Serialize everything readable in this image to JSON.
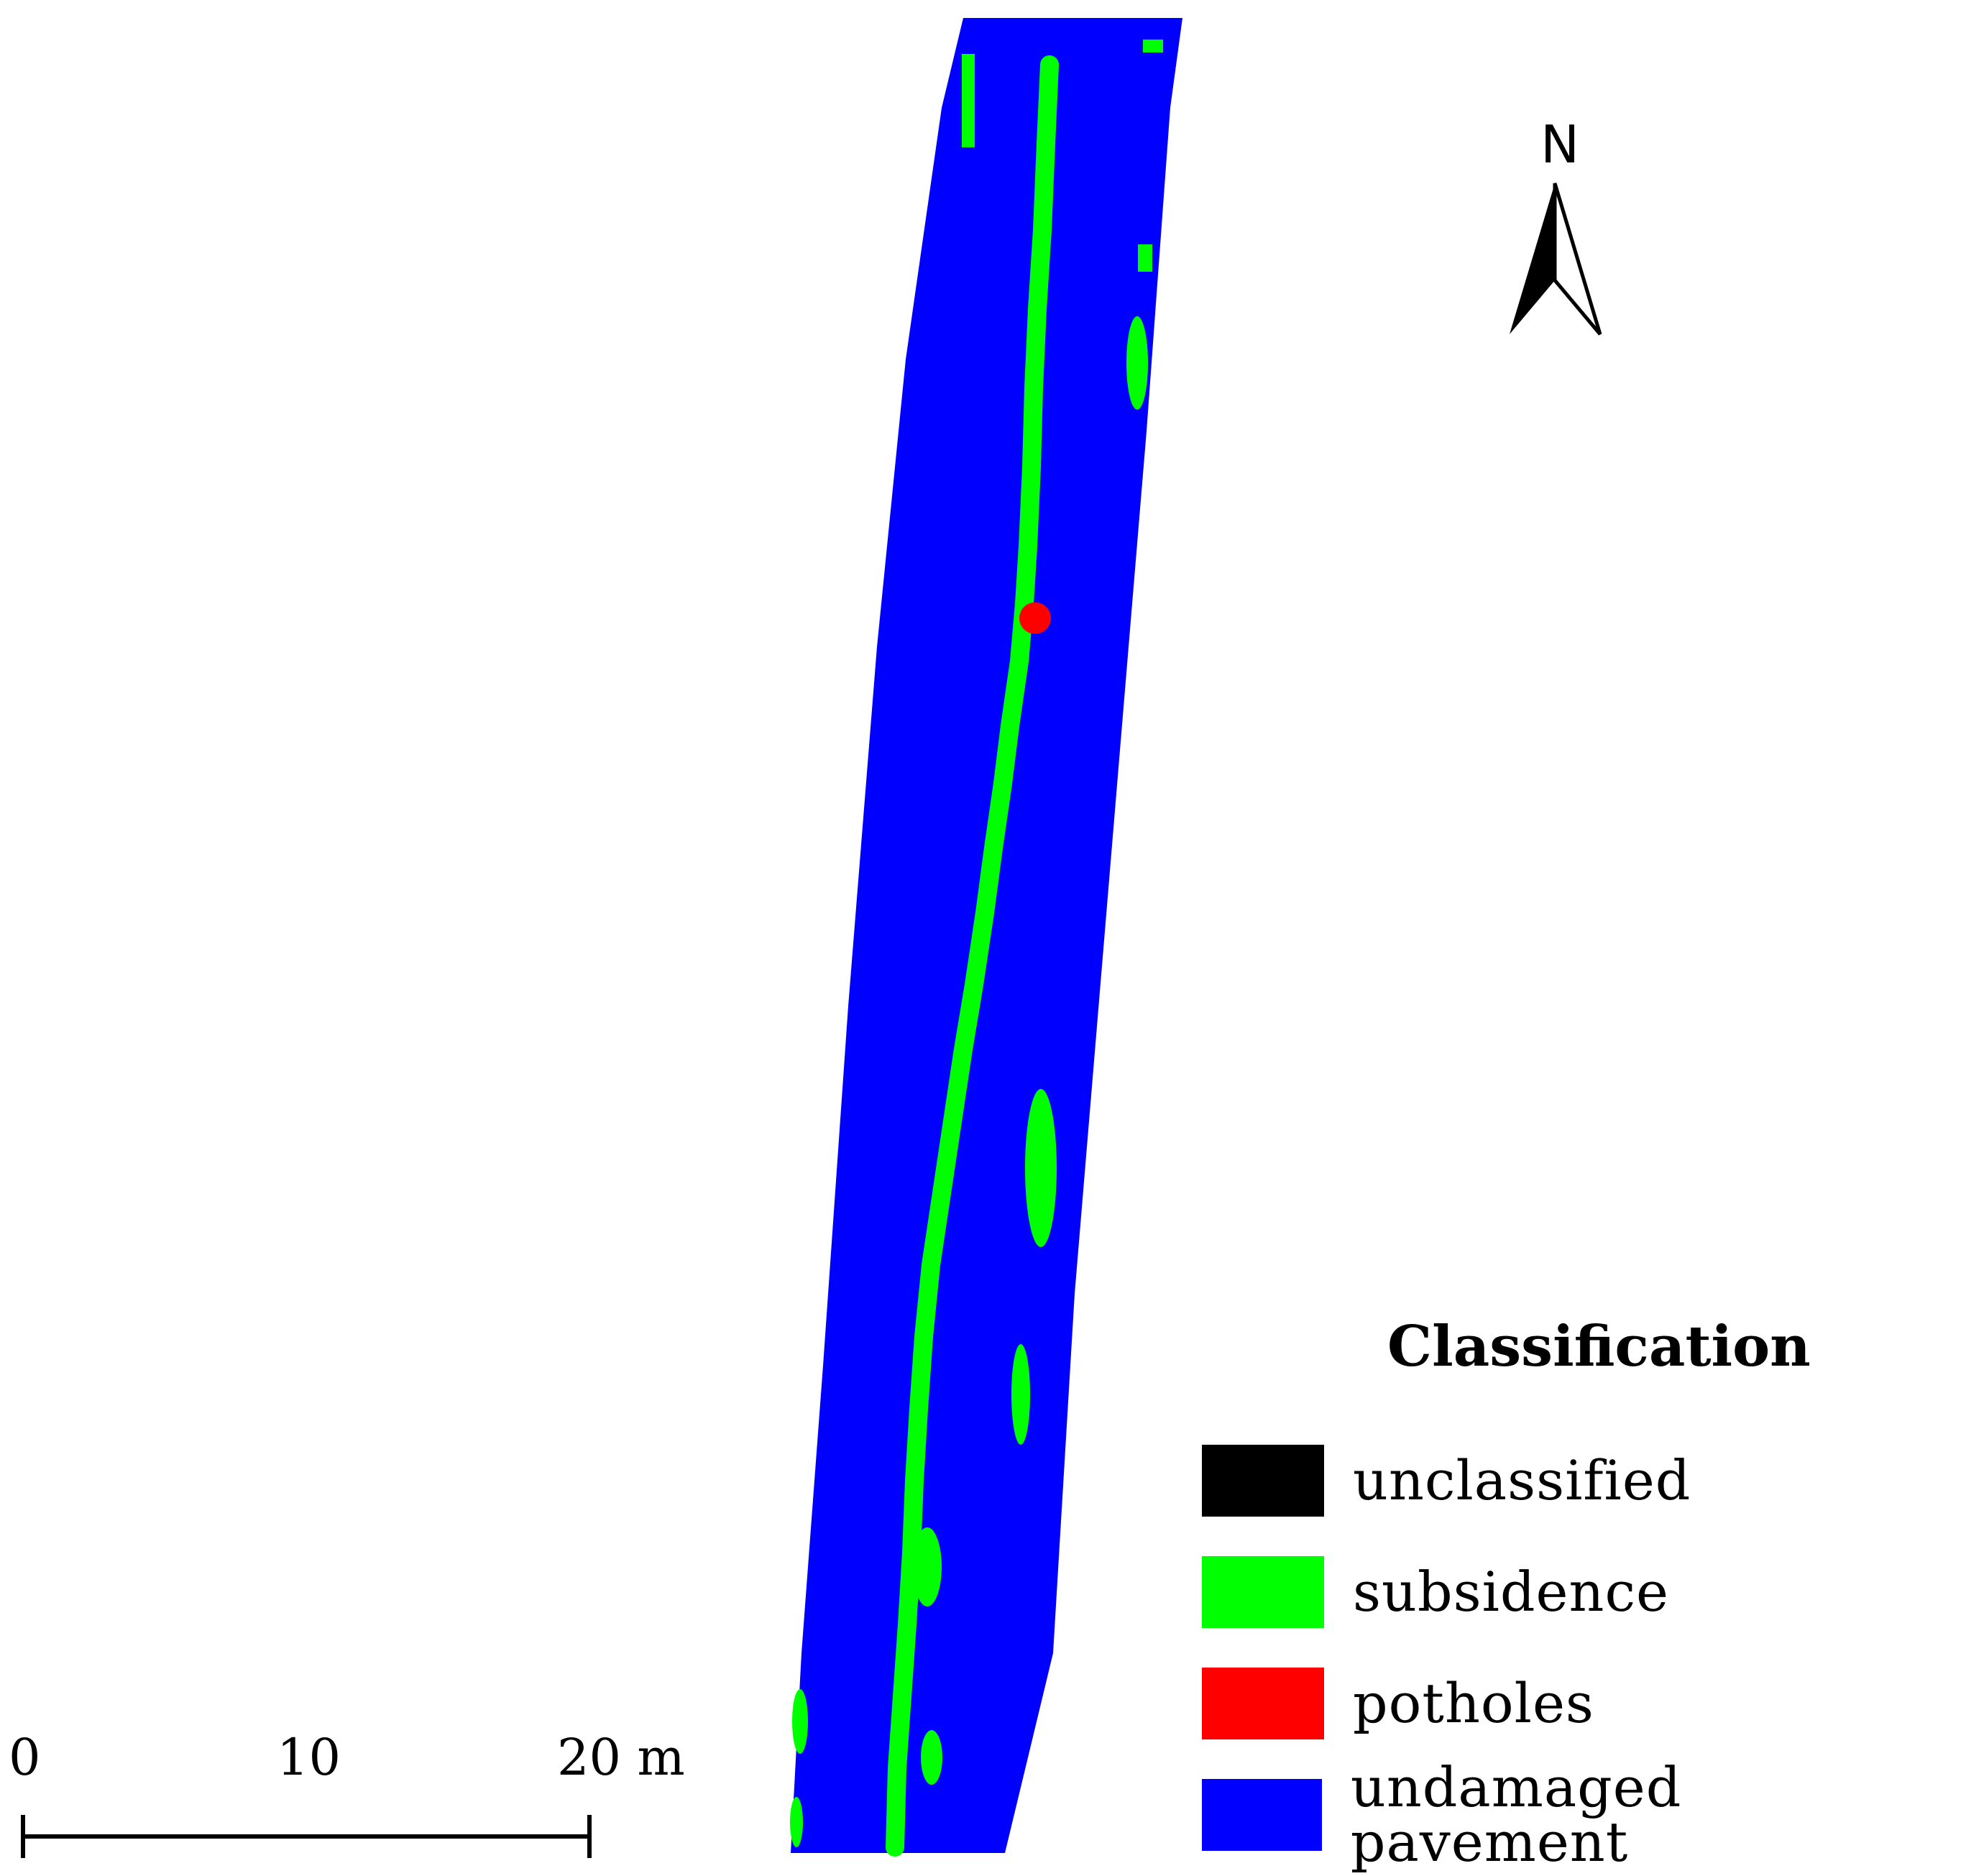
{
  "north_arrow": {
    "label": "N",
    "icon": "north-arrow-icon"
  },
  "legend": {
    "title": "Classification",
    "items": [
      {
        "label": "unclassified",
        "color": "#000000"
      },
      {
        "label": "subsidence",
        "color": "#00ff00"
      },
      {
        "label": "potholes",
        "color": "#ff0000"
      },
      {
        "label": "undamaged pavement",
        "color": "#0000ff"
      }
    ]
  },
  "scale_bar": {
    "ticks": [
      "0",
      "10",
      "20 m"
    ]
  },
  "colors": {
    "pavement": "#0000ff",
    "subsidence": "#00ff00",
    "pothole": "#ff0000",
    "line": "#000000"
  }
}
